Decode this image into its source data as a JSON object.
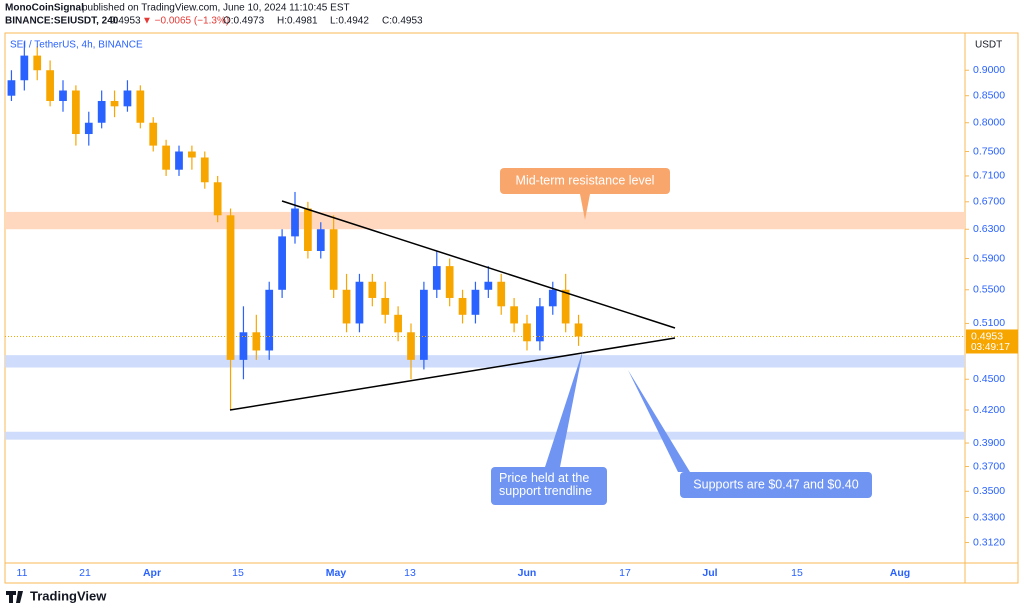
{
  "header": {
    "publisher": "MonoCoinSignal",
    "published": "published on TradingView.com, June 10, 2024 11:10:45 EST",
    "symbol": "BINANCE:SEIUSDT, 240",
    "last": "0.4953",
    "change": "▼ −0.0065 (−1.3%)",
    "open": "O:0.4973",
    "high": "H:0.4981",
    "low": "L:0.4942",
    "close": "C:0.4953"
  },
  "chart_data": {
    "type": "candlestick",
    "title": "SEI / TetherUS, 4h, BINANCE",
    "y_axis_label": "USDT",
    "log_scale": true,
    "up_color": "#2962ff",
    "down_color": "#f7a600",
    "ylim": [
      0.298,
      0.974
    ],
    "yticks": [
      {
        "value": 0.9,
        "label": "0.9000"
      },
      {
        "value": 0.85,
        "label": "0.8500"
      },
      {
        "value": 0.8,
        "label": "0.8000"
      },
      {
        "value": 0.75,
        "label": "0.7500"
      },
      {
        "value": 0.71,
        "label": "0.7100"
      },
      {
        "value": 0.67,
        "label": "0.6700"
      },
      {
        "value": 0.63,
        "label": "0.6300"
      },
      {
        "value": 0.59,
        "label": "0.5900"
      },
      {
        "value": 0.55,
        "label": "0.5500"
      },
      {
        "value": 0.51,
        "label": "0.5100"
      },
      {
        "value": 0.45,
        "label": "0.4500"
      },
      {
        "value": 0.42,
        "label": "0.4200"
      },
      {
        "value": 0.39,
        "label": "0.3900"
      },
      {
        "value": 0.37,
        "label": "0.3700"
      },
      {
        "value": 0.35,
        "label": "0.3500"
      },
      {
        "value": 0.33,
        "label": "0.3300"
      },
      {
        "value": 0.312,
        "label": "0.3120"
      }
    ],
    "xticks": [
      "11",
      "21",
      "Apr",
      "15",
      "May",
      "13",
      "Jun",
      "17",
      "Jul",
      "15",
      "Aug"
    ],
    "open": [
      0.85,
      0.88,
      0.93,
      0.9,
      0.84,
      0.86,
      0.78,
      0.8,
      0.84,
      0.83,
      0.86,
      0.8,
      0.76,
      0.72,
      0.75,
      0.74,
      0.7,
      0.65,
      0.47,
      0.5,
      0.48,
      0.55,
      0.62,
      0.66,
      0.6,
      0.63,
      0.55,
      0.51,
      0.56,
      0.54,
      0.52,
      0.5,
      0.47,
      0.55,
      0.58,
      0.54,
      0.52,
      0.55,
      0.56,
      0.53,
      0.51,
      0.49,
      0.53,
      0.55,
      0.51
    ],
    "high": [
      0.9,
      0.96,
      0.95,
      0.92,
      0.88,
      0.87,
      0.82,
      0.86,
      0.86,
      0.88,
      0.87,
      0.81,
      0.77,
      0.76,
      0.76,
      0.75,
      0.71,
      0.66,
      0.53,
      0.52,
      0.56,
      0.63,
      0.685,
      0.67,
      0.64,
      0.65,
      0.57,
      0.57,
      0.57,
      0.56,
      0.53,
      0.51,
      0.56,
      0.6,
      0.59,
      0.55,
      0.56,
      0.58,
      0.57,
      0.54,
      0.52,
      0.54,
      0.56,
      0.57,
      0.52
    ],
    "low": [
      0.84,
      0.86,
      0.88,
      0.83,
      0.82,
      0.76,
      0.76,
      0.79,
      0.81,
      0.82,
      0.79,
      0.75,
      0.71,
      0.71,
      0.72,
      0.69,
      0.64,
      0.42,
      0.45,
      0.47,
      0.47,
      0.54,
      0.61,
      0.59,
      0.59,
      0.54,
      0.5,
      0.5,
      0.53,
      0.51,
      0.49,
      0.45,
      0.46,
      0.54,
      0.53,
      0.51,
      0.51,
      0.54,
      0.52,
      0.5,
      0.48,
      0.48,
      0.52,
      0.5,
      0.485
    ],
    "close": [
      0.88,
      0.93,
      0.9,
      0.84,
      0.86,
      0.78,
      0.8,
      0.84,
      0.83,
      0.86,
      0.8,
      0.76,
      0.72,
      0.75,
      0.74,
      0.7,
      0.65,
      0.47,
      0.5,
      0.48,
      0.55,
      0.62,
      0.66,
      0.6,
      0.63,
      0.55,
      0.51,
      0.56,
      0.54,
      0.52,
      0.5,
      0.47,
      0.55,
      0.58,
      0.54,
      0.52,
      0.55,
      0.56,
      0.53,
      0.51,
      0.49,
      0.53,
      0.55,
      0.51,
      0.4953
    ],
    "price_tag": 0.4953,
    "countdown": "03:49:17",
    "bands": [
      {
        "low": 0.63,
        "high": 0.655,
        "color": "#ffd8bf"
      },
      {
        "low": 0.462,
        "high": 0.475,
        "color": "#cfdcfb"
      },
      {
        "low": 0.393,
        "high": 0.4,
        "color": "#cfdcfb"
      }
    ],
    "annotations": [
      "Mid-term resistance level",
      "Price held at the support trendline",
      "Supports are $0.47 and $0.40"
    ]
  },
  "footer": "TradingView"
}
